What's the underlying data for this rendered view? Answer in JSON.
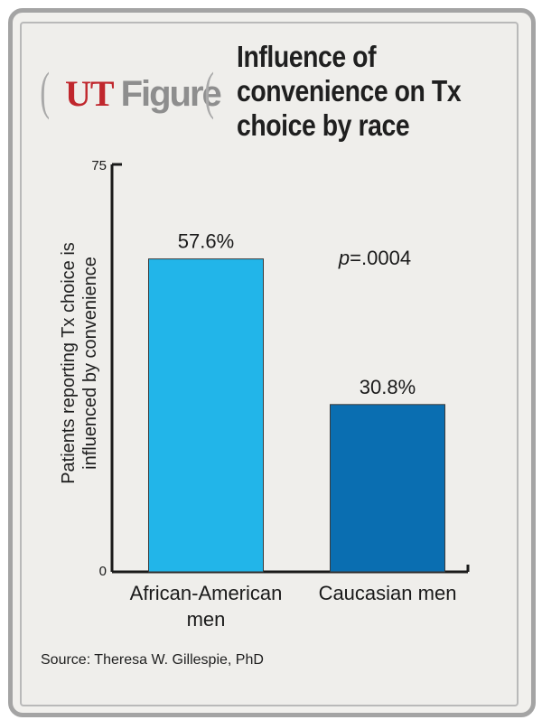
{
  "header": {
    "brand_left": "UT",
    "brand_right": "Figure",
    "title_lines": [
      "Influence of",
      "convenience on Tx",
      "choice by race"
    ]
  },
  "chart_data": {
    "type": "bar",
    "categories": [
      [
        "African-American",
        "men"
      ],
      [
        "Caucasian men"
      ]
    ],
    "values": [
      57.6,
      30.8
    ],
    "data_labels": [
      "57.6%",
      "30.8%"
    ],
    "colors": [
      "#22b5e9",
      "#0a6eb1"
    ],
    "ylabel_lines": [
      "Patients reporting Tx choice is",
      "influenced by convenience"
    ],
    "ylim": [
      0,
      75
    ],
    "yticks": [
      "0",
      "75"
    ],
    "annotation": {
      "prefix": "p",
      "text": "=.0004"
    }
  },
  "footer": {
    "source": "Source: Theresa W. Gillespie, PhD"
  }
}
